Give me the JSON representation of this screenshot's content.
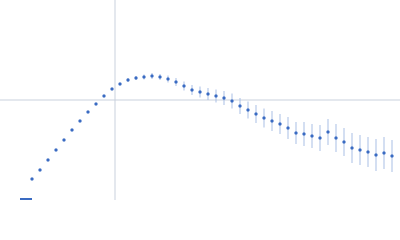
{
  "chart_data": {
    "type": "scatter",
    "xlim": [
      0,
      400
    ],
    "ylim": [
      0,
      200
    ],
    "vline": 115,
    "hline": 100,
    "color": "#3a6bc2",
    "error_color": "#a9bfe6",
    "ref_line_color": "#c8d0dc",
    "x": [
      32,
      40,
      48,
      56,
      64,
      72,
      80,
      88,
      96,
      104,
      112,
      120,
      128,
      136,
      144,
      152,
      160,
      168,
      176,
      184,
      192,
      200,
      208,
      216,
      224,
      232,
      240,
      248,
      256,
      264,
      272,
      280,
      288,
      296,
      304,
      312,
      320,
      328,
      336,
      344,
      352,
      360,
      368,
      376,
      384,
      392
    ],
    "values": [
      21,
      30,
      40,
      50,
      60,
      70,
      79,
      88,
      96,
      104,
      111,
      116,
      120,
      122,
      123,
      124,
      123,
      121,
      118,
      114,
      110,
      108,
      106,
      104,
      102,
      99,
      94,
      90,
      86,
      82,
      79,
      76,
      72,
      67,
      66,
      64,
      62,
      68,
      62,
      58,
      52,
      50,
      48,
      45,
      47,
      44
    ],
    "errors": [
      0.3,
      0.4,
      0.5,
      0.5,
      0.6,
      0.7,
      0.8,
      0.9,
      1,
      1,
      1.2,
      1.5,
      2,
      2,
      2.5,
      3,
      3,
      3.5,
      4,
      4.5,
      5,
      5.5,
      6,
      6.5,
      7,
      7.5,
      8,
      8.5,
      9,
      9.5,
      10,
      10,
      11,
      11,
      12,
      12,
      13,
      13,
      14,
      14,
      15,
      15,
      15,
      16,
      16,
      16
    ]
  }
}
